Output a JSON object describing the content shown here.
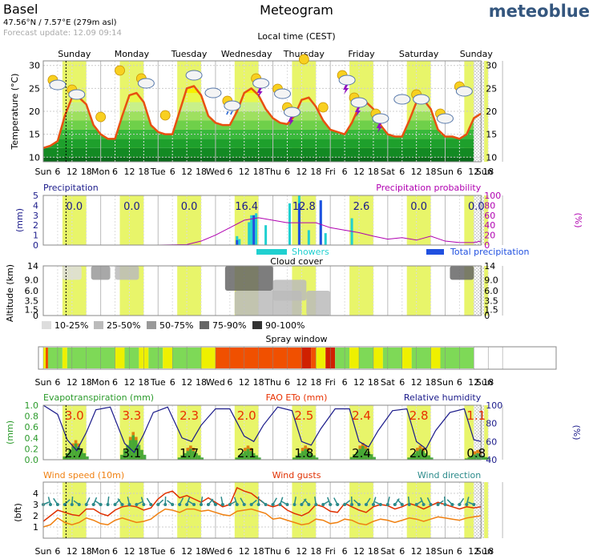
{
  "header": {
    "location": "Basel",
    "coords": "47.56°N / 7.57°E (279m asl)",
    "forecast_update": "Forecast update: 12.09 09:14",
    "title": "Meteogram",
    "brand": "meteoblue",
    "local_time": "Local time (CEST)"
  },
  "days": [
    "Sunday",
    "Monday",
    "Tuesday",
    "Wednesday",
    "Thursday",
    "Friday",
    "Saturday",
    "Sunday"
  ],
  "time_axis_labels": [
    "Sun",
    "6",
    "12",
    "18",
    "Mon",
    "6",
    "12",
    "18",
    "Tue",
    "6",
    "12",
    "18",
    "Wed",
    "6",
    "12",
    "18",
    "Thu",
    "6",
    "12",
    "18",
    "Fri",
    "6",
    "12",
    "18",
    "Sat",
    "6",
    "12",
    "18",
    "Sun",
    "6",
    "12",
    "18",
    "Sun"
  ],
  "colors": {
    "daylight": "#e8f56a",
    "temp_line": "#e85010",
    "precip_prob": "#b000b0",
    "showers": "#20d0d0",
    "total_precip": "#2050e0",
    "precip_text": "#1a1a8a",
    "evapo": "#2a9a2a",
    "fao": "#e83000",
    "humidity": "#1a1a8a",
    "wind_speed": "#f08010",
    "wind_gust": "#e03000",
    "wind_dir": "#2a8a8a",
    "spray_good": "#7ed957",
    "spray_ok": "#eef000",
    "spray_bad": "#f05000",
    "spray_worst": "#d02000"
  },
  "chart_data": [
    {
      "type": "line",
      "title": "",
      "ylabel": "Temperature (°C)",
      "ylim": [
        10,
        30
      ],
      "yticks": [
        10,
        15,
        20,
        25,
        30
      ],
      "x_unit": "hours since Sunday 00:00",
      "series": [
        {
          "x": [
            0,
            3,
            6,
            9,
            12,
            15,
            18,
            21,
            24,
            27,
            30,
            33,
            36,
            39,
            42,
            45,
            48,
            51,
            54,
            57,
            60,
            63,
            66,
            69,
            72,
            75,
            78,
            81,
            84,
            87,
            90,
            93,
            96,
            99,
            102,
            105,
            108,
            111,
            114,
            117,
            120,
            123,
            126,
            129,
            132,
            135,
            138,
            141,
            144,
            147,
            150,
            153,
            156,
            159,
            162,
            165,
            168,
            171,
            174,
            177,
            180,
            183
          ],
          "values": [
            12,
            12.5,
            13.5,
            19,
            23,
            23,
            21.5,
            17,
            15,
            14,
            14,
            19,
            23.5,
            24,
            22,
            17,
            15.5,
            15,
            15,
            20,
            25,
            25.5,
            23.5,
            19,
            17.5,
            17,
            17,
            20,
            24,
            25,
            23.5,
            20.5,
            18.5,
            17.5,
            17.2,
            19,
            22.5,
            23,
            21,
            18,
            16,
            15.5,
            15,
            17.5,
            21,
            22,
            20.5,
            17,
            15,
            14.5,
            14.5,
            18,
            22,
            22.5,
            20.5,
            16,
            14.5,
            14.5,
            14,
            15,
            18.5,
            19.5
          ]
        }
      ]
    },
    {
      "type": "bar",
      "title": "Precipitation",
      "ylabel": "(mm)",
      "ylim": [
        0,
        5
      ],
      "yticks": [
        0,
        1,
        2,
        3,
        4,
        5
      ],
      "y2label": "(%)",
      "y2lim": [
        0,
        100
      ],
      "y2ticks": [
        0,
        20,
        40,
        60,
        80,
        100
      ],
      "right_title": "Precipitation probability",
      "daily_totals": [
        "0.0",
        "0.0",
        "0.0",
        "16.4",
        "12.8",
        "2.6",
        "0.0",
        "0.0"
      ],
      "legend": [
        "Showers",
        "Total precipitation"
      ],
      "showers": [
        {
          "x": 81,
          "values": 0.9
        },
        {
          "x": 82,
          "values": 0.6
        },
        {
          "x": 86,
          "values": 2.3
        },
        {
          "x": 87,
          "values": 3.0
        },
        {
          "x": 88,
          "values": 3.0
        },
        {
          "x": 89,
          "values": 3.2
        },
        {
          "x": 93,
          "values": 2.0
        },
        {
          "x": 103,
          "values": 4.2
        },
        {
          "x": 107,
          "values": 5.0
        },
        {
          "x": 111,
          "values": 1.5
        },
        {
          "x": 116,
          "values": 4.5
        },
        {
          "x": 118,
          "values": 1.2
        },
        {
          "x": 129,
          "values": 2.7
        }
      ],
      "totals": [
        {
          "x": 81,
          "values": 0.5
        },
        {
          "x": 88,
          "values": 3.0
        },
        {
          "x": 107,
          "values": 4.2
        },
        {
          "x": 116,
          "values": 4.5
        }
      ],
      "probability": [
        {
          "x": 0,
          "values": 0
        },
        {
          "x": 48,
          "values": 0
        },
        {
          "x": 60,
          "values": 1
        },
        {
          "x": 66,
          "values": 8
        },
        {
          "x": 72,
          "values": 20
        },
        {
          "x": 78,
          "values": 35
        },
        {
          "x": 84,
          "values": 50
        },
        {
          "x": 90,
          "values": 55
        },
        {
          "x": 96,
          "values": 50
        },
        {
          "x": 102,
          "values": 45
        },
        {
          "x": 108,
          "values": 45
        },
        {
          "x": 114,
          "values": 45
        },
        {
          "x": 120,
          "values": 35
        },
        {
          "x": 126,
          "values": 30
        },
        {
          "x": 132,
          "values": 25
        },
        {
          "x": 138,
          "values": 18
        },
        {
          "x": 144,
          "values": 12
        },
        {
          "x": 150,
          "values": 15
        },
        {
          "x": 156,
          "values": 10
        },
        {
          "x": 162,
          "values": 18
        },
        {
          "x": 168,
          "values": 8
        },
        {
          "x": 174,
          "values": 5
        },
        {
          "x": 180,
          "values": 5
        },
        {
          "x": 183,
          "values": 8
        }
      ]
    },
    {
      "type": "heatmap",
      "title": "Cloud cover",
      "ylabel": "Altitude (km)",
      "yticks": [
        "0",
        "1.5",
        "3.5",
        "6.0",
        "9.0",
        "14"
      ],
      "legend": [
        "10-25%",
        "25-50%",
        "50-75%",
        "75-90%",
        "90-100%"
      ],
      "patches": [
        {
          "x0": 8,
          "x1": 16,
          "level": "4",
          "alt": [
            9,
            14
          ],
          "level_shade": "10-25%"
        },
        {
          "x0": 20,
          "x1": 28,
          "level": "2",
          "alt": [
            9,
            14
          ],
          "level_shade": "50-75%"
        },
        {
          "x0": 30,
          "x1": 40,
          "level": "1",
          "alt": [
            9,
            14
          ],
          "level_shade": "25-50%"
        },
        {
          "x0": 76,
          "x1": 96,
          "level": "3",
          "alt": [
            6,
            14
          ],
          "level_shade": "75-90%"
        },
        {
          "x0": 80,
          "x1": 108,
          "level": "1",
          "alt": [
            0,
            6
          ],
          "level_shade": "25-50%"
        },
        {
          "x0": 96,
          "x1": 110,
          "level": "1",
          "alt": [
            3.5,
            9
          ],
          "level_shade": "25-50%"
        },
        {
          "x0": 110,
          "x1": 120,
          "level": "1",
          "alt": [
            0,
            6
          ],
          "level_shade": "25-50%"
        },
        {
          "x0": 170,
          "x1": 180,
          "level": "3",
          "alt": [
            9,
            14
          ],
          "level_shade": "75-90%"
        }
      ]
    },
    {
      "type": "table",
      "title": "Spray window",
      "segments": [
        {
          "x0": 0,
          "x1": 1,
          "rating": "ok"
        },
        {
          "x0": 1,
          "x1": 2,
          "rating": "bad"
        },
        {
          "x0": 2,
          "x1": 8,
          "rating": "good"
        },
        {
          "x0": 8,
          "x1": 10,
          "rating": "ok"
        },
        {
          "x0": 10,
          "x1": 30,
          "rating": "good"
        },
        {
          "x0": 30,
          "x1": 34,
          "rating": "ok"
        },
        {
          "x0": 34,
          "x1": 40,
          "rating": "good"
        },
        {
          "x0": 40,
          "x1": 44,
          "rating": "ok"
        },
        {
          "x0": 44,
          "x1": 50,
          "rating": "good"
        },
        {
          "x0": 50,
          "x1": 54,
          "rating": "ok"
        },
        {
          "x0": 54,
          "x1": 66,
          "rating": "good"
        },
        {
          "x0": 66,
          "x1": 72,
          "rating": "ok"
        },
        {
          "x0": 72,
          "x1": 108,
          "rating": "bad"
        },
        {
          "x0": 108,
          "x1": 112,
          "rating": "worst"
        },
        {
          "x0": 112,
          "x1": 114,
          "rating": "bad"
        },
        {
          "x0": 114,
          "x1": 118,
          "rating": "ok"
        },
        {
          "x0": 118,
          "x1": 122,
          "rating": "worst"
        },
        {
          "x0": 122,
          "x1": 128,
          "rating": "good"
        },
        {
          "x0": 128,
          "x1": 132,
          "rating": "ok"
        },
        {
          "x0": 132,
          "x1": 138,
          "rating": "good"
        },
        {
          "x0": 138,
          "x1": 142,
          "rating": "ok"
        },
        {
          "x0": 142,
          "x1": 150,
          "rating": "good"
        },
        {
          "x0": 150,
          "x1": 154,
          "rating": "ok"
        },
        {
          "x0": 154,
          "x1": 162,
          "rating": "good"
        },
        {
          "x0": 162,
          "x1": 166,
          "rating": "ok"
        },
        {
          "x0": 166,
          "x1": 180,
          "rating": "good"
        }
      ]
    },
    {
      "type": "area",
      "title": "Evapotranspiration (mm)",
      "center_title": "FAO ETo (mm)",
      "right_title": "Relative humidity",
      "ylabel": "(mm)",
      "ylim": [
        0,
        1.0
      ],
      "yticks": [
        "0.0",
        "0.2",
        "0.4",
        "0.6",
        "0.8",
        "1.0"
      ],
      "y2label": "(%)",
      "y2ticks": [
        40,
        60,
        80,
        100
      ],
      "y2lim": [
        40,
        100
      ],
      "daily_eto": [
        "3.0",
        "3.3",
        "2.3",
        "2.0",
        "2.5",
        "2.4",
        "2.8",
        "1.1"
      ],
      "daily_evapo": [
        "2.7",
        "3.1",
        "1.7",
        "2.1",
        "1.8",
        "2.4",
        "2.0",
        "0.8"
      ],
      "evapo_peak": [
        0.3,
        0.45,
        0.2,
        0.2,
        0.2,
        0.25,
        0.2,
        0.12
      ],
      "humidity": [
        {
          "x": 0,
          "values": 100
        },
        {
          "x": 6,
          "values": 90
        },
        {
          "x": 10,
          "values": 62
        },
        {
          "x": 14,
          "values": 50
        },
        {
          "x": 18,
          "values": 70
        },
        {
          "x": 22,
          "values": 95
        },
        {
          "x": 28,
          "values": 98
        },
        {
          "x": 34,
          "values": 58
        },
        {
          "x": 38,
          "values": 48
        },
        {
          "x": 42,
          "values": 68
        },
        {
          "x": 46,
          "values": 92
        },
        {
          "x": 52,
          "values": 98
        },
        {
          "x": 58,
          "values": 64
        },
        {
          "x": 62,
          "values": 60
        },
        {
          "x": 66,
          "values": 78
        },
        {
          "x": 72,
          "values": 96
        },
        {
          "x": 78,
          "values": 96
        },
        {
          "x": 84,
          "values": 66
        },
        {
          "x": 88,
          "values": 60
        },
        {
          "x": 92,
          "values": 78
        },
        {
          "x": 98,
          "values": 98
        },
        {
          "x": 104,
          "values": 94
        },
        {
          "x": 108,
          "values": 60
        },
        {
          "x": 112,
          "values": 56
        },
        {
          "x": 116,
          "values": 74
        },
        {
          "x": 122,
          "values": 96
        },
        {
          "x": 128,
          "values": 96
        },
        {
          "x": 132,
          "values": 60
        },
        {
          "x": 136,
          "values": 54
        },
        {
          "x": 140,
          "values": 72
        },
        {
          "x": 146,
          "values": 94
        },
        {
          "x": 152,
          "values": 96
        },
        {
          "x": 156,
          "values": 60
        },
        {
          "x": 160,
          "values": 52
        },
        {
          "x": 164,
          "values": 72
        },
        {
          "x": 170,
          "values": 92
        },
        {
          "x": 176,
          "values": 96
        },
        {
          "x": 180,
          "values": 62
        },
        {
          "x": 183,
          "values": 60
        }
      ]
    },
    {
      "type": "line",
      "title": "Wind speed (10m)",
      "center_title": "Wind gusts",
      "right_title": "Wind direction",
      "ylabel": "(bft)",
      "ylim": [
        0,
        5
      ],
      "yticks": [
        1,
        2,
        3,
        4
      ],
      "series": [
        {
          "name": "Wind speed (10m)",
          "values": [
            1,
            1.2,
            1.8,
            1.4,
            1.2,
            1.4,
            1.8,
            1.6,
            1.3,
            1.2,
            1.6,
            1.8,
            1.6,
            1.4,
            1.5,
            1.7,
            2.2,
            2.6,
            2.5,
            2.3,
            2.6,
            2.6,
            2.4,
            2.5,
            2.3,
            2.1,
            2.0,
            2.4,
            2.5,
            2.6,
            2.4,
            2.2,
            1.7,
            1.8,
            1.6,
            1.4,
            1.2,
            1.3,
            1.7,
            1.6,
            1.3,
            1.4,
            1.7,
            1.6,
            1.3,
            1.2,
            1.5,
            1.7,
            1.6,
            1.4,
            1.6,
            1.8,
            1.7,
            1.5,
            1.7,
            1.9,
            1.8,
            1.7,
            1.6,
            1.8,
            1.9,
            2.0
          ]
        },
        {
          "name": "Wind gusts",
          "values": [
            1.5,
            2.0,
            2.5,
            2.3,
            2.1,
            2.0,
            2.6,
            2.6,
            2.2,
            2.0,
            2.5,
            2.8,
            2.9,
            2.8,
            2.5,
            2.7,
            3.5,
            4.0,
            4.2,
            3.6,
            3.8,
            3.5,
            3.2,
            3.6,
            3.2,
            2.8,
            3.0,
            4.5,
            4.2,
            4.0,
            3.5,
            3.0,
            2.8,
            3.0,
            2.5,
            2.2,
            2.0,
            2.3,
            3.0,
            2.8,
            2.4,
            2.3,
            3.1,
            2.8,
            2.5,
            2.3,
            2.8,
            3.0,
            2.9,
            2.6,
            2.8,
            3.1,
            2.9,
            2.6,
            2.9,
            3.2,
            3.0,
            2.8,
            2.6,
            2.8,
            2.7,
            2.8
          ]
        }
      ]
    }
  ]
}
